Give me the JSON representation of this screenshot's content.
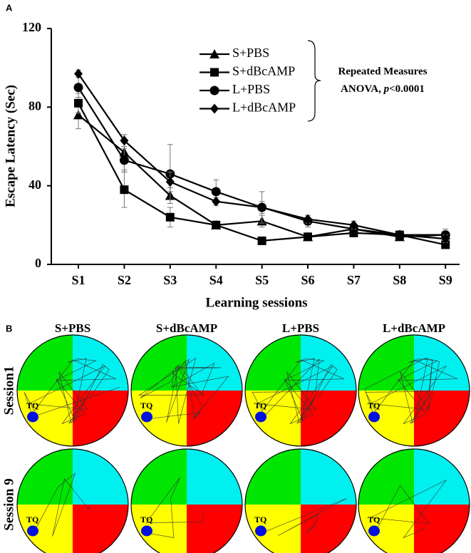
{
  "chart_data": {
    "type": "line",
    "panel_label": "A",
    "y_label": "Escape Latency (Sec)",
    "x_label": "Learning sessions",
    "categories": [
      "S1",
      "S2",
      "S3",
      "S4",
      "S5",
      "S6",
      "S7",
      "S8",
      "S9"
    ],
    "ylim": [
      0,
      120
    ],
    "yticks": [
      0,
      40,
      80,
      120
    ],
    "series": [
      {
        "name": "S+PBS",
        "marker": "triangle",
        "color": "#000000",
        "values": [
          76,
          57,
          35,
          20,
          22,
          14,
          18,
          14,
          15
        ],
        "errors": [
          7,
          9,
          4,
          2,
          3,
          2,
          2,
          1,
          2
        ]
      },
      {
        "name": "S+dBcAMP",
        "marker": "square",
        "color": "#000000",
        "values": [
          82,
          38,
          24,
          20,
          12,
          14,
          16,
          15,
          10
        ],
        "errors": [
          5,
          9,
          5,
          2,
          1,
          2,
          2,
          1,
          2
        ]
      },
      {
        "name": "L+PBS",
        "marker": "circle",
        "color": "#000000",
        "values": [
          90,
          53,
          46,
          37,
          29,
          22,
          18,
          15,
          15
        ],
        "errors": [
          5,
          6,
          15,
          6,
          8,
          3,
          2,
          1,
          3
        ]
      },
      {
        "name": "L+dBcAMP",
        "marker": "diamond",
        "color": "#000000",
        "values": [
          97,
          63,
          42,
          32,
          29,
          23,
          20,
          15,
          13
        ],
        "errors": [
          2,
          3,
          5,
          2,
          3,
          2,
          2,
          1,
          2
        ]
      }
    ],
    "annotation": {
      "line1": "Repeated Measures",
      "line2_start": "ANOVA, ",
      "line2_italic": "p",
      "line2_end": "<0.0001"
    }
  },
  "panel_b": {
    "panel_label": "B",
    "columns": [
      "S+PBS",
      "S+dBcAMP",
      "L+PBS",
      "L+dBcAMP"
    ],
    "rows": [
      "Session1",
      "Session 9"
    ],
    "target_label": "TQ"
  }
}
